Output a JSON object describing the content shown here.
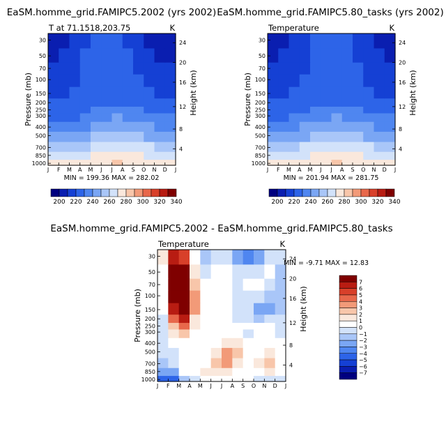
{
  "chart_data": [
    {
      "type": "heatmap",
      "title": "EaSM.homme_grid.FAMIPC5.2002 (yrs 2002)",
      "subtitle": "T at 71.1518,203.75",
      "units": "K",
      "xlabel": "",
      "ylabel": "Pressure (mb)",
      "y2label": "Height (km)",
      "x_ticks": [
        "J",
        "F",
        "M",
        "A",
        "M",
        "J",
        "J",
        "A",
        "S",
        "O",
        "N",
        "D",
        "J"
      ],
      "y_ticks": [
        "30",
        "50",
        "70",
        "100",
        "150",
        "200",
        "250",
        "300",
        "400",
        "500",
        "700",
        "850",
        "1000"
      ],
      "y2_ticks": [
        "24",
        "20",
        "16",
        "12",
        "8",
        "4"
      ],
      "min_max_text": "MIN = 199.36  MAX = 282.02",
      "colorbar": {
        "orientation": "horizontal",
        "labels": [
          "200",
          "220",
          "240",
          "260",
          "280",
          "300",
          "320",
          "340"
        ],
        "colors": [
          "#00007f",
          "#0a1eb0",
          "#1540d4",
          "#2d64e8",
          "#4f86f0",
          "#7aa6f4",
          "#a9c6f8",
          "#d2e2fa",
          "#fae8dc",
          "#f8c6aa",
          "#f29a78",
          "#e8684b",
          "#d8402a",
          "#b81c12",
          "#7f0000"
        ]
      },
      "levels": [
        {
          "pressure": "1000",
          "values": [
            272,
            272,
            271,
            272,
            274,
            276,
            281,
            280,
            278,
            275,
            273,
            272,
            272
          ]
        },
        {
          "pressure": "850",
          "values": [
            266,
            265,
            265,
            266,
            268,
            272,
            277,
            276,
            274,
            270,
            267,
            266,
            266
          ]
        },
        {
          "pressure": "700",
          "values": [
            258,
            257,
            257,
            258,
            260,
            265,
            269,
            268,
            266,
            262,
            259,
            258,
            258
          ]
        },
        {
          "pressure": "500",
          "values": [
            245,
            244,
            244,
            245,
            248,
            253,
            256,
            256,
            253,
            249,
            246,
            245,
            245
          ]
        },
        {
          "pressure": "400",
          "values": [
            238,
            237,
            237,
            238,
            241,
            246,
            249,
            249,
            246,
            242,
            239,
            238,
            238
          ]
        },
        {
          "pressure": "300",
          "values": [
            230,
            229,
            229,
            230,
            233,
            238,
            241,
            241,
            238,
            234,
            231,
            230,
            230
          ]
        },
        {
          "pressure": "250",
          "values": [
            226,
            225,
            225,
            226,
            229,
            233,
            236,
            236,
            233,
            230,
            227,
            226,
            226
          ]
        },
        {
          "pressure": "200",
          "values": [
            221,
            220,
            221,
            222,
            225,
            228,
            229,
            228,
            226,
            224,
            222,
            221,
            221
          ]
        },
        {
          "pressure": "150",
          "values": [
            218,
            218,
            219,
            221,
            224,
            226,
            227,
            226,
            224,
            221,
            219,
            218,
            218
          ]
        },
        {
          "pressure": "100",
          "values": [
            214,
            215,
            217,
            220,
            223,
            224,
            224,
            223,
            222,
            219,
            216,
            214,
            214
          ]
        },
        {
          "pressure": "70",
          "values": [
            211,
            212,
            215,
            219,
            222,
            223,
            222,
            221,
            220,
            217,
            213,
            211,
            211
          ]
        },
        {
          "pressure": "50",
          "values": [
            207,
            209,
            213,
            218,
            222,
            223,
            222,
            221,
            219,
            215,
            210,
            207,
            207
          ]
        },
        {
          "pressure": "30",
          "values": [
            201,
            204,
            210,
            217,
            221,
            223,
            222,
            220,
            218,
            213,
            206,
            201,
            201
          ]
        }
      ]
    },
    {
      "type": "heatmap",
      "title": "EaSM.homme_grid.FAMIPC5.80_tasks (yrs 2002)",
      "subtitle": "Temperature",
      "units": "K",
      "xlabel": "",
      "ylabel": "Pressure (mb)",
      "y2label": "Height (km)",
      "x_ticks": [
        "J",
        "F",
        "M",
        "A",
        "M",
        "J",
        "J",
        "A",
        "S",
        "O",
        "N",
        "D",
        "J"
      ],
      "y_ticks": [
        "30",
        "50",
        "70",
        "100",
        "150",
        "200",
        "250",
        "300",
        "400",
        "500",
        "700",
        "850",
        "1000"
      ],
      "y2_ticks": [
        "24",
        "20",
        "16",
        "12",
        "8",
        "4"
      ],
      "min_max_text": "MIN = 201.94  MAX = 281.75",
      "colorbar": {
        "orientation": "horizontal",
        "labels": [
          "200",
          "220",
          "240",
          "260",
          "280",
          "300",
          "320",
          "340"
        ],
        "colors": [
          "#00007f",
          "#0a1eb0",
          "#1540d4",
          "#2d64e8",
          "#4f86f0",
          "#7aa6f4",
          "#a9c6f8",
          "#d2e2fa",
          "#fae8dc",
          "#f8c6aa",
          "#f29a78",
          "#e8684b",
          "#d8402a",
          "#b81c12",
          "#7f0000"
        ]
      },
      "levels": [
        {
          "pressure": "1000",
          "values": [
            272,
            272,
            272,
            273,
            275,
            277,
            281,
            280,
            278,
            275,
            273,
            272,
            272
          ]
        },
        {
          "pressure": "850",
          "values": [
            266,
            265,
            266,
            267,
            269,
            272,
            277,
            276,
            273,
            270,
            267,
            266,
            266
          ]
        },
        {
          "pressure": "700",
          "values": [
            258,
            257,
            258,
            259,
            261,
            265,
            269,
            268,
            265,
            262,
            259,
            258,
            258
          ]
        },
        {
          "pressure": "500",
          "values": [
            245,
            244,
            245,
            246,
            249,
            253,
            256,
            255,
            252,
            249,
            246,
            245,
            245
          ]
        },
        {
          "pressure": "400",
          "values": [
            238,
            237,
            238,
            239,
            242,
            246,
            249,
            248,
            245,
            242,
            239,
            238,
            238
          ]
        },
        {
          "pressure": "300",
          "values": [
            230,
            229,
            230,
            231,
            234,
            238,
            241,
            240,
            237,
            234,
            231,
            230,
            230
          ]
        },
        {
          "pressure": "250",
          "values": [
            226,
            225,
            226,
            227,
            230,
            233,
            236,
            235,
            232,
            229,
            227,
            226,
            226
          ]
        },
        {
          "pressure": "200",
          "values": [
            222,
            221,
            222,
            223,
            225,
            228,
            229,
            228,
            226,
            224,
            222,
            221,
            222
          ]
        },
        {
          "pressure": "150",
          "values": [
            219,
            219,
            220,
            221,
            223,
            225,
            226,
            226,
            224,
            221,
            219,
            219,
            219
          ]
        },
        {
          "pressure": "100",
          "values": [
            216,
            216,
            217,
            219,
            221,
            223,
            224,
            224,
            224,
            220,
            216,
            216,
            216
          ]
        },
        {
          "pressure": "70",
          "values": [
            213,
            213,
            214,
            217,
            220,
            222,
            222,
            222,
            222,
            218,
            213,
            213,
            213
          ]
        },
        {
          "pressure": "50",
          "values": [
            209,
            210,
            212,
            216,
            220,
            222,
            222,
            221,
            220,
            216,
            211,
            209,
            209
          ]
        },
        {
          "pressure": "30",
          "values": [
            203,
            206,
            209,
            214,
            220,
            222,
            222,
            221,
            219,
            214,
            207,
            203,
            203
          ]
        }
      ]
    },
    {
      "type": "heatmap",
      "title": "EaSM.homme_grid.FAMIPC5.2002 - EaSM.homme_grid.FAMIPC5.80_tasks",
      "subtitle": "Temperature",
      "units": "K",
      "xlabel": "",
      "ylabel": "Pressure (mb)",
      "y2label": "Height (km)",
      "x_ticks": [
        "J",
        "F",
        "M",
        "A",
        "M",
        "J",
        "J",
        "A",
        "S",
        "O",
        "N",
        "D",
        "J"
      ],
      "y_ticks": [
        "30",
        "50",
        "70",
        "100",
        "150",
        "200",
        "250",
        "300",
        "400",
        "500",
        "700",
        "850",
        "1000"
      ],
      "y2_ticks": [
        "24",
        "20",
        "16",
        "12",
        "8",
        "4"
      ],
      "min_max_text": "MIN =  -9.71  MAX =  12.83",
      "colorbar": {
        "orientation": "vertical",
        "labels": [
          "7",
          "6",
          "5",
          "4",
          "3",
          "2",
          "1",
          "0",
          "−1",
          "−2",
          "−3",
          "−4",
          "−5",
          "−6",
          "−7"
        ],
        "colors": [
          "#7f0000",
          "#b81c12",
          "#d8402a",
          "#e8684b",
          "#f29a78",
          "#f8c6aa",
          "#fae8dc",
          "#ffffff",
          "#d2e2fa",
          "#a9c6f8",
          "#7aa6f4",
          "#4f86f0",
          "#2d64e8",
          "#1540d4",
          "#0a1eb0",
          "#00007f"
        ]
      },
      "levels": [
        {
          "pressure": "1000",
          "values": [
            -1.5,
            -8,
            -3,
            -1,
            -0.5,
            0.5,
            0.5,
            0.3,
            -0.5,
            -0.5,
            -1.5,
            -1,
            -1.5
          ]
        },
        {
          "pressure": "850",
          "values": [
            -1,
            -5,
            -1,
            0,
            0.5,
            1,
            2,
            1,
            0,
            -1,
            2,
            0.5,
            -1
          ]
        },
        {
          "pressure": "700",
          "values": [
            -1,
            -3,
            0,
            0,
            0,
            0.5,
            4,
            1.5,
            0,
            -1,
            3,
            1,
            -1
          ]
        },
        {
          "pressure": "500",
          "values": [
            -1,
            -2,
            0,
            0,
            0,
            0,
            2,
            5,
            0,
            -1,
            2,
            0.5,
            -1
          ]
        },
        {
          "pressure": "400",
          "values": [
            -1.5,
            -1.5,
            1,
            0,
            0,
            0,
            1,
            2,
            0,
            -1,
            0.5,
            0.5,
            -1.5
          ]
        },
        {
          "pressure": "300",
          "values": [
            -2,
            -1,
            4,
            0,
            0,
            0,
            0,
            0,
            -1,
            -0.5,
            0,
            0.5,
            -2
          ]
        },
        {
          "pressure": "250",
          "values": [
            -2,
            -1,
            6,
            2,
            0,
            0,
            0,
            0,
            -0.5,
            -0.5,
            0,
            0.5,
            -2
          ]
        },
        {
          "pressure": "200",
          "values": [
            -2,
            0,
            9,
            3,
            0,
            -0.5,
            0,
            -0.5,
            -1,
            -0.5,
            -3,
            0,
            -2
          ]
        },
        {
          "pressure": "150",
          "values": [
            -3,
            2,
            11,
            5,
            1,
            -0.5,
            0,
            -0.5,
            -1.5,
            -1,
            -6,
            -1,
            -3
          ]
        },
        {
          "pressure": "100",
          "values": [
            -3,
            3,
            12,
            6,
            1,
            -1,
            0.5,
            -1,
            -2,
            0.5,
            -2,
            -2,
            -3
          ]
        },
        {
          "pressure": "70",
          "values": [
            -3,
            3,
            11,
            5,
            0,
            -0.5,
            1,
            -1.5,
            -1,
            0,
            -1,
            -1,
            -3
          ]
        },
        {
          "pressure": "50",
          "values": [
            -3,
            4,
            10,
            4,
            -1,
            -1.5,
            0.5,
            -1,
            -2,
            -1,
            -0.5,
            -0.5,
            -3
          ]
        },
        {
          "pressure": "30",
          "values": [
            -2,
            5,
            8,
            3,
            -2,
            -2,
            -0.5,
            -2,
            -4,
            -5,
            -2,
            -1,
            -2
          ]
        }
      ]
    }
  ]
}
